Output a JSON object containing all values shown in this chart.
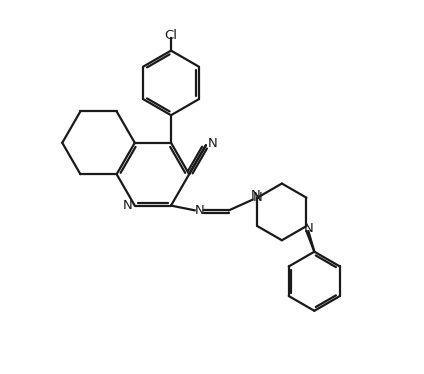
{
  "background_color": "#ffffff",
  "line_color": "#1a1a1a",
  "line_width": 1.6,
  "figsize": [
    4.24,
    3.74
  ],
  "dpi": 100,
  "xlim": [
    0,
    10
  ],
  "ylim": [
    0,
    9.35
  ]
}
